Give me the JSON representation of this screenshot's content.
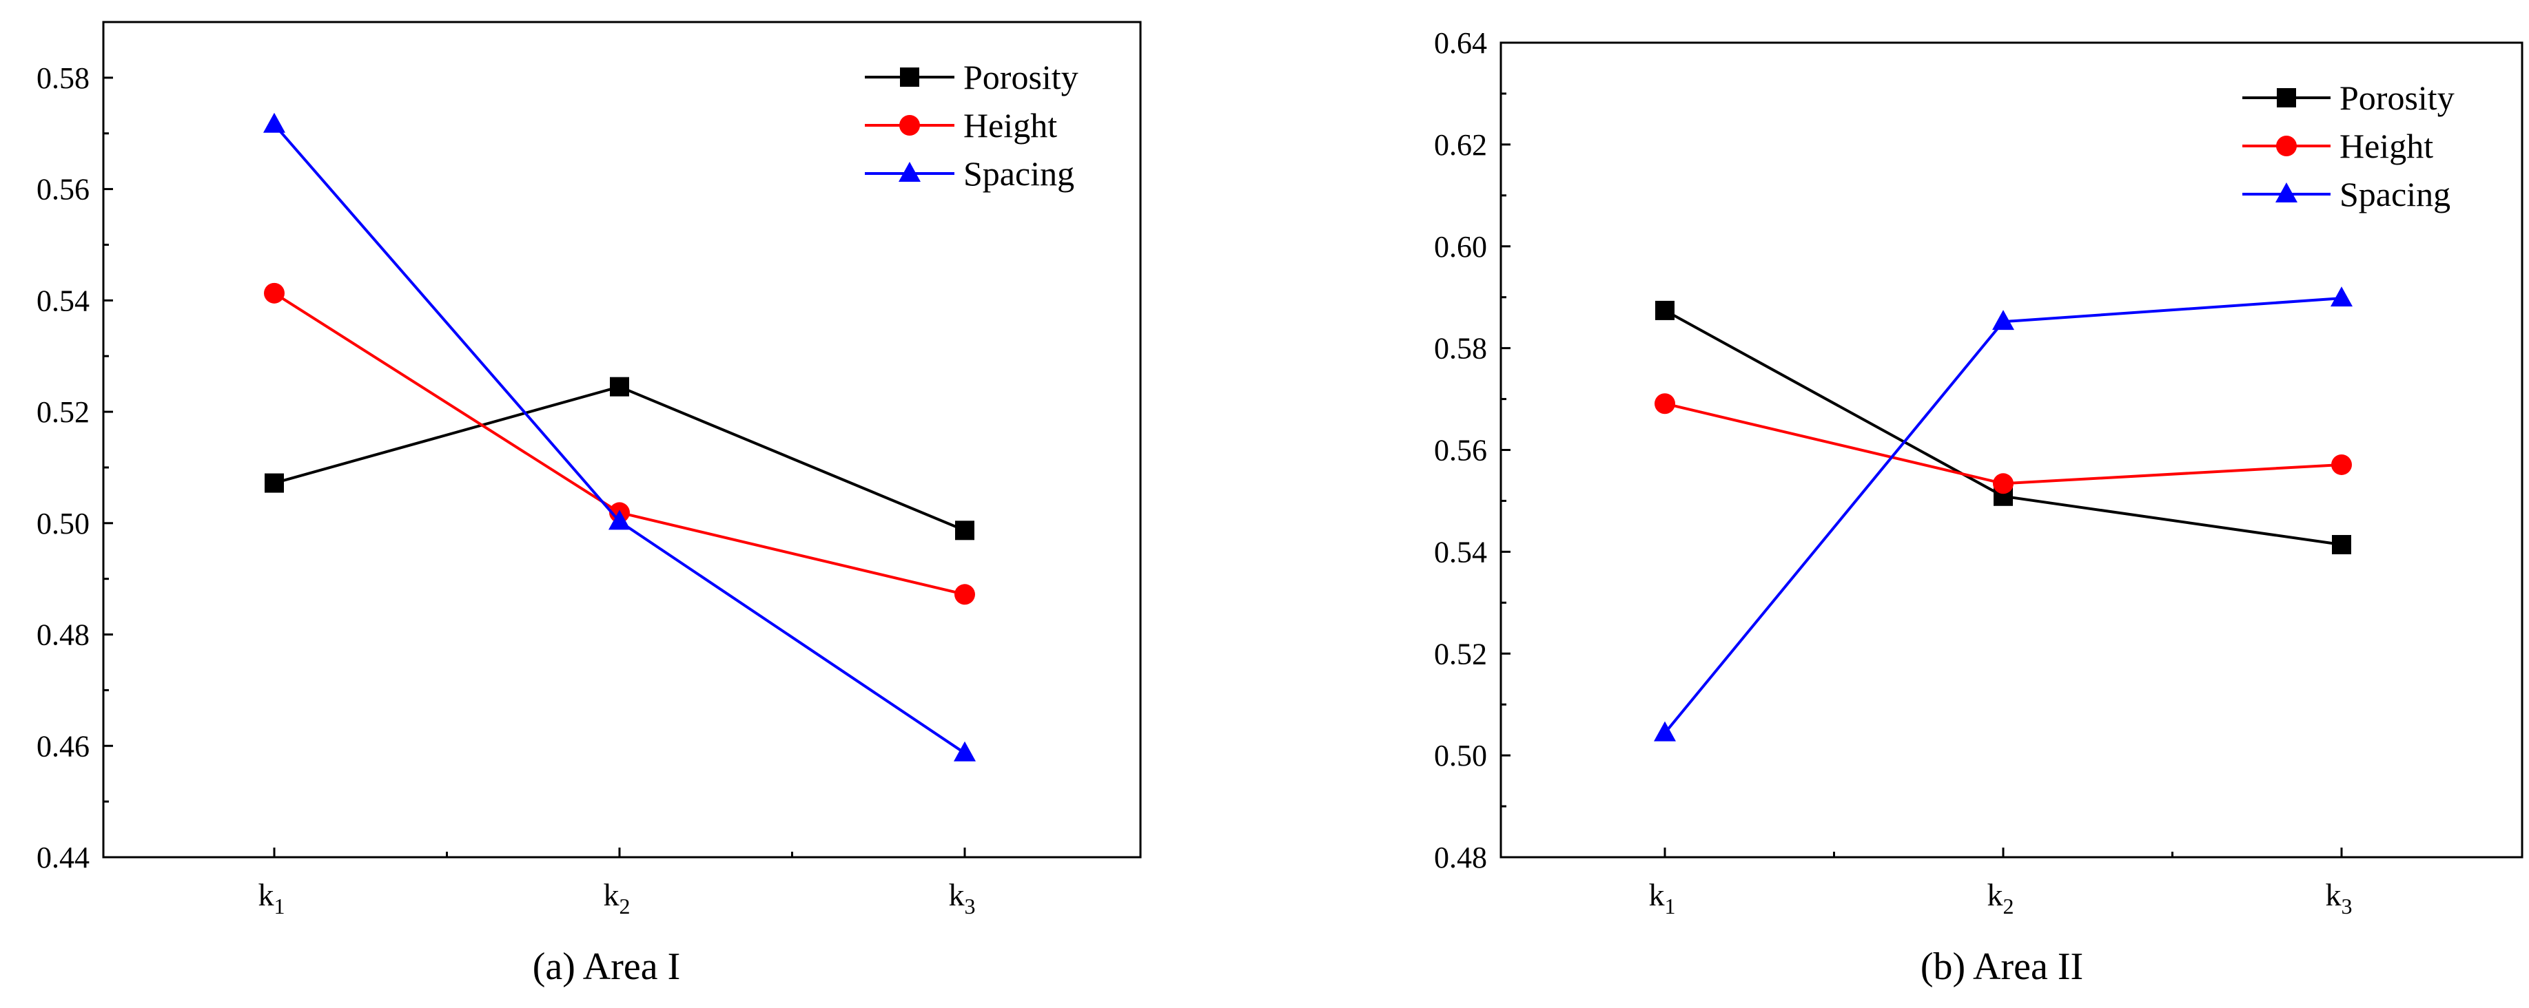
{
  "chart_data": [
    {
      "type": "line",
      "caption": "(a)  Area I",
      "categories": [
        {
          "main": "k",
          "sub": "1"
        },
        {
          "main": "k",
          "sub": "2"
        },
        {
          "main": "k",
          "sub": "3"
        }
      ],
      "ylim": [
        0.44,
        0.59
      ],
      "yticks": [
        "0.44",
        "0.46",
        "0.48",
        "0.50",
        "0.52",
        "0.54",
        "0.56",
        "0.58"
      ],
      "grid": false,
      "legend_position": "top-right",
      "series": [
        {
          "name": "Porosity",
          "color": "#000000",
          "marker": "square",
          "values": [
            0.5072,
            0.5245,
            0.4987
          ]
        },
        {
          "name": "Height",
          "color": "#ff0000",
          "marker": "circle",
          "values": [
            0.5413,
            0.5019,
            0.4872
          ]
        },
        {
          "name": "Spacing",
          "color": "#0000ff",
          "marker": "triangle",
          "values": [
            0.5716,
            0.5003,
            0.4587
          ]
        }
      ]
    },
    {
      "type": "line",
      "caption": "(b)  Area II",
      "categories": [
        {
          "main": "k",
          "sub": "1"
        },
        {
          "main": "k",
          "sub": "2"
        },
        {
          "main": "k",
          "sub": "3"
        }
      ],
      "ylim": [
        0.48,
        0.64
      ],
      "yticks": [
        "0.48",
        "0.50",
        "0.52",
        "0.54",
        "0.56",
        "0.58",
        "0.60",
        "0.62",
        "0.64"
      ],
      "grid": false,
      "legend_position": "top-right",
      "series": [
        {
          "name": "Porosity",
          "color": "#000000",
          "marker": "square",
          "values": [
            0.5874,
            0.5509,
            0.5414
          ]
        },
        {
          "name": "Height",
          "color": "#ff0000",
          "marker": "circle",
          "values": [
            0.5691,
            0.5534,
            0.5571
          ]
        },
        {
          "name": "Spacing",
          "color": "#0000ff",
          "marker": "triangle",
          "values": [
            0.5044,
            0.5852,
            0.5898
          ]
        }
      ]
    }
  ]
}
